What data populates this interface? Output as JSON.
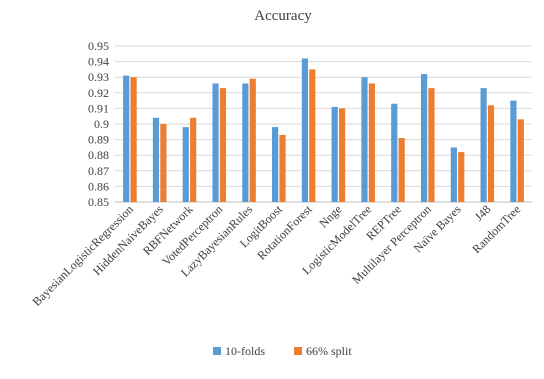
{
  "chart_data": {
    "type": "bar",
    "title": "Accuracy",
    "xlabel": "",
    "ylabel": "",
    "categories": [
      "BayesianLogisticRegression",
      "HiddenNaiveBayes",
      "RBFNetwork",
      "VotedPerceptron",
      "LazyBayesianRules",
      "LogitBoost",
      "RotationForest",
      "Nnge",
      "LogisticModelTree",
      "REPTree",
      "Multilayer Perceptron",
      "Naïve Bayes",
      "J48",
      "RandomTree"
    ],
    "series": [
      {
        "name": "10-folds",
        "color": "#5b9bd5",
        "values": [
          0.931,
          0.904,
          0.898,
          0.926,
          0.926,
          0.898,
          0.942,
          0.911,
          0.93,
          0.913,
          0.932,
          0.885,
          0.923,
          0.915
        ]
      },
      {
        "name": "66% split",
        "color": "#ed7d31",
        "values": [
          0.93,
          0.9,
          0.904,
          0.923,
          0.929,
          0.893,
          0.935,
          0.91,
          0.926,
          0.891,
          0.923,
          0.882,
          0.912,
          0.903
        ]
      }
    ],
    "ylim": [
      0.85,
      0.95
    ],
    "yticks": [
      "0.85",
      "0.86",
      "0.87",
      "0.88",
      "0.89",
      "0.9",
      "0.91",
      "0.92",
      "0.93",
      "0.94",
      "0.95"
    ],
    "grid": true,
    "legend_position": "bottom"
  }
}
